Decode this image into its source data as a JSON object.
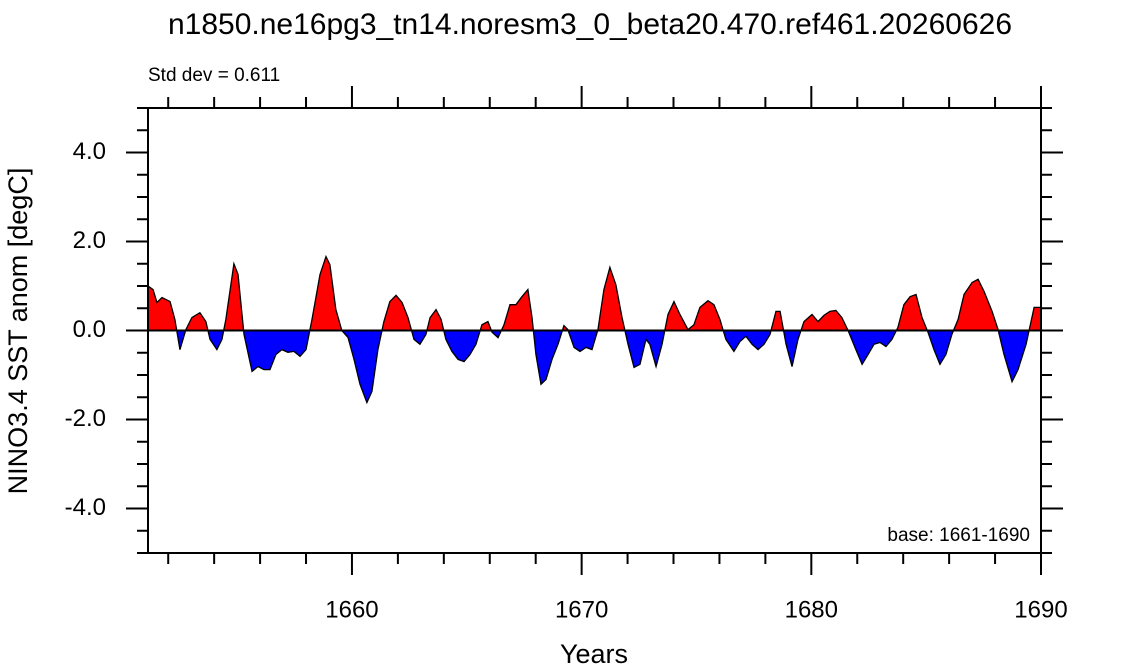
{
  "chart_data": {
    "type": "area",
    "title": "n1850.ne16pg3_tn14.noresm3_0_beta20.470.ref461.20260626",
    "annotation_left": "Std dev = 0.611",
    "annotation_right": "base: 1661-1690",
    "ylabel": "NINO3.4 SST anom [degC]",
    "xlabel": "Years",
    "positive_color": "#ff0000",
    "negative_color": "#0000ff",
    "baseline": 0,
    "xlim": [
      1651.12,
      1690
    ],
    "ylim": [
      -5,
      5
    ],
    "xticks": [
      1660,
      1670,
      1680,
      1690
    ],
    "yticks": [
      {
        "value": -4,
        "label": "-4.0"
      },
      {
        "value": -2,
        "label": "-2.0"
      },
      {
        "value": 0,
        "label": "0.0"
      },
      {
        "value": 2,
        "label": "2.0"
      },
      {
        "value": 4,
        "label": "4.0"
      }
    ],
    "xminorticks": [
      1652,
      1654,
      1656,
      1658,
      1662,
      1664,
      1666,
      1668,
      1672,
      1674,
      1676,
      1678,
      1682,
      1684,
      1686,
      1688
    ],
    "yminorticks": [
      -5,
      -4.5,
      -3.5,
      -3,
      -2.5,
      -1.5,
      -1,
      -0.5,
      0.5,
      1,
      1.5,
      2.5,
      3,
      3.5,
      4.5,
      5
    ],
    "x": [
      1651.12,
      1651.34,
      1651.51,
      1651.73,
      1652.08,
      1652.29,
      1652.51,
      1652.77,
      1653.03,
      1653.38,
      1653.64,
      1653.82,
      1654.12,
      1654.34,
      1654.51,
      1654.86,
      1655.04,
      1655.3,
      1655.65,
      1655.91,
      1656.17,
      1656.43,
      1656.69,
      1656.95,
      1657.21,
      1657.47,
      1657.74,
      1658.0,
      1658.26,
      1658.61,
      1658.87,
      1659.04,
      1659.3,
      1659.56,
      1659.83,
      1660.09,
      1660.35,
      1660.65,
      1660.87,
      1661.13,
      1661.39,
      1661.65,
      1661.92,
      1662.18,
      1662.44,
      1662.7,
      1662.96,
      1663.22,
      1663.4,
      1663.66,
      1663.88,
      1664.09,
      1664.35,
      1664.62,
      1664.88,
      1665.14,
      1665.4,
      1665.66,
      1665.92,
      1666.1,
      1666.36,
      1666.62,
      1666.88,
      1667.14,
      1667.4,
      1667.66,
      1667.84,
      1668.01,
      1668.23,
      1668.45,
      1668.71,
      1668.97,
      1669.23,
      1669.4,
      1669.67,
      1669.93,
      1670.19,
      1670.45,
      1670.71,
      1670.97,
      1671.23,
      1671.49,
      1671.76,
      1672.02,
      1672.28,
      1672.54,
      1672.8,
      1672.97,
      1673.24,
      1673.5,
      1673.76,
      1674.02,
      1674.28,
      1674.63,
      1674.89,
      1675.15,
      1675.5,
      1675.76,
      1676.02,
      1676.28,
      1676.63,
      1676.89,
      1677.15,
      1677.42,
      1677.68,
      1677.94,
      1678.2,
      1678.46,
      1678.64,
      1678.9,
      1679.16,
      1679.42,
      1679.68,
      1680.03,
      1680.29,
      1680.55,
      1680.81,
      1681.07,
      1681.33,
      1681.6,
      1681.94,
      1682.21,
      1682.47,
      1682.73,
      1682.99,
      1683.25,
      1683.51,
      1683.77,
      1684.03,
      1684.3,
      1684.56,
      1684.82,
      1685.08,
      1685.34,
      1685.6,
      1685.86,
      1686.12,
      1686.39,
      1686.65,
      1687.0,
      1687.26,
      1687.52,
      1687.87,
      1688.13,
      1688.39,
      1688.74,
      1689.0,
      1689.35,
      1689.7,
      1690
    ],
    "values": [
      1.0,
      0.92,
      0.63,
      0.74,
      0.65,
      0.25,
      -0.43,
      0.02,
      0.29,
      0.4,
      0.2,
      -0.2,
      -0.43,
      -0.2,
      0.25,
      1.5,
      1.26,
      -0.09,
      -0.92,
      -0.81,
      -0.88,
      -0.88,
      -0.54,
      -0.43,
      -0.49,
      -0.47,
      -0.58,
      -0.43,
      0.25,
      1.26,
      1.66,
      1.48,
      0.47,
      0.0,
      -0.16,
      -0.65,
      -1.21,
      -1.62,
      -1.37,
      -0.43,
      0.2,
      0.65,
      0.79,
      0.63,
      0.29,
      -0.2,
      -0.31,
      -0.09,
      0.29,
      0.47,
      0.25,
      -0.2,
      -0.47,
      -0.65,
      -0.7,
      -0.54,
      -0.31,
      0.13,
      0.2,
      -0.04,
      -0.16,
      0.13,
      0.58,
      0.58,
      0.76,
      0.92,
      0.29,
      -0.54,
      -1.21,
      -1.1,
      -0.65,
      -0.31,
      0.11,
      0.02,
      -0.38,
      -0.47,
      -0.38,
      -0.43,
      0.02,
      0.92,
      1.42,
      1.03,
      0.29,
      -0.31,
      -0.83,
      -0.76,
      -0.2,
      -0.31,
      -0.81,
      -0.31,
      0.36,
      0.65,
      0.36,
      0.02,
      0.13,
      0.52,
      0.67,
      0.58,
      0.25,
      -0.2,
      -0.47,
      -0.25,
      -0.13,
      -0.31,
      -0.43,
      -0.31,
      -0.09,
      0.43,
      0.43,
      -0.31,
      -0.81,
      -0.2,
      0.2,
      0.36,
      0.2,
      0.34,
      0.43,
      0.45,
      0.29,
      0.0,
      -0.43,
      -0.76,
      -0.54,
      -0.31,
      -0.27,
      -0.36,
      -0.2,
      0.07,
      0.58,
      0.76,
      0.81,
      0.29,
      -0.04,
      -0.43,
      -0.76,
      -0.54,
      -0.09,
      0.25,
      0.81,
      1.08,
      1.15,
      0.88,
      0.43,
      0.02,
      -0.54,
      -1.15,
      -0.88,
      -0.31,
      0.52,
      0.52
    ]
  }
}
